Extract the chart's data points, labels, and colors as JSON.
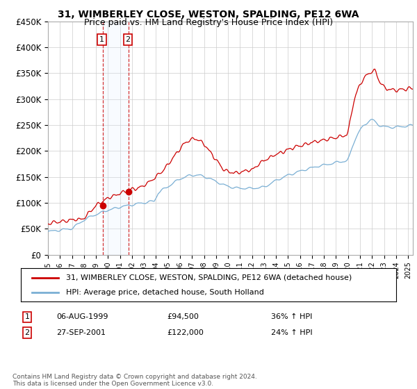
{
  "title": "31, WIMBERLEY CLOSE, WESTON, SPALDING, PE12 6WA",
  "subtitle": "Price paid vs. HM Land Registry's House Price Index (HPI)",
  "ylabel_ticks": [
    "£0",
    "£50K",
    "£100K",
    "£150K",
    "£200K",
    "£250K",
    "£300K",
    "£350K",
    "£400K",
    "£450K"
  ],
  "ytick_values": [
    0,
    50000,
    100000,
    150000,
    200000,
    250000,
    300000,
    350000,
    400000,
    450000
  ],
  "ylim": [
    0,
    450000
  ],
  "xlim_start": 1995.3,
  "xlim_end": 2025.4,
  "red_line_label": "31, WIMBERLEY CLOSE, WESTON, SPALDING, PE12 6WA (detached house)",
  "blue_line_label": "HPI: Average price, detached house, South Holland",
  "transaction1_date": "06-AUG-1999",
  "transaction1_price": "£94,500",
  "transaction1_hpi": "36% ↑ HPI",
  "transaction1_x": 1999.58,
  "transaction1_y": 94500,
  "transaction2_date": "27-SEP-2001",
  "transaction2_price": "£122,000",
  "transaction2_hpi": "24% ↑ HPI",
  "transaction2_x": 2001.73,
  "transaction2_y": 122000,
  "footnote": "Contains HM Land Registry data © Crown copyright and database right 2024.\nThis data is licensed under the Open Government Licence v3.0.",
  "background_color": "#ffffff",
  "grid_color": "#cccccc",
  "red_color": "#cc0000",
  "blue_color": "#7aafd4",
  "shading_color": "#ddeeff",
  "title_fontsize": 10,
  "subtitle_fontsize": 9,
  "axis_fontsize": 8.5,
  "legend_fontsize": 8,
  "footnote_fontsize": 6.5
}
